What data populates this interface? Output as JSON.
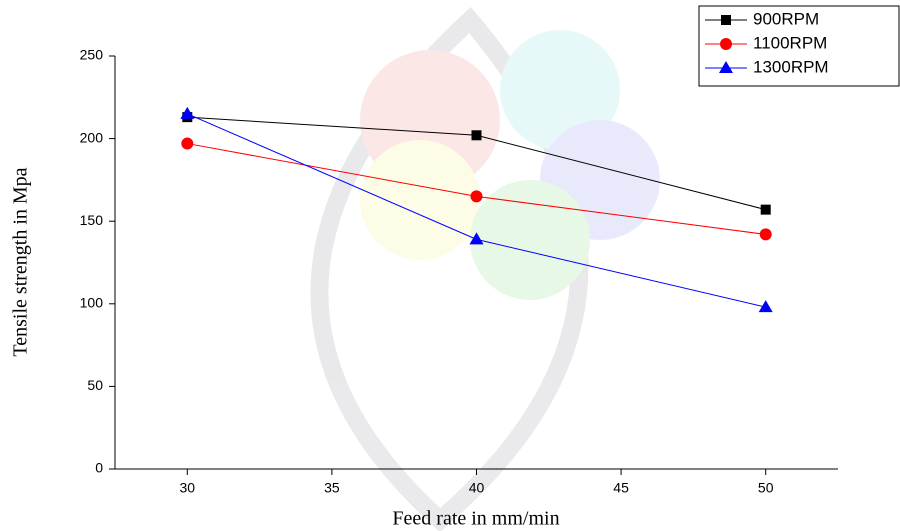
{
  "chart_data": {
    "type": "line",
    "x_label": "Feed rate in mm/min",
    "y_label": "Tensile strength in Mpa",
    "x": [
      30,
      40,
      50
    ],
    "series": [
      {
        "name": "900RPM",
        "color": "#000000",
        "marker": "square",
        "values": [
          213,
          202,
          157
        ]
      },
      {
        "name": "1100RPM",
        "color": "#ff0000",
        "marker": "circle",
        "values": [
          197,
          165,
          142
        ]
      },
      {
        "name": "1300RPM",
        "color": "#0000ff",
        "marker": "triangle",
        "values": [
          215,
          139,
          98
        ]
      }
    ],
    "xlim": [
      27.5,
      52.5
    ],
    "xticks": [
      30,
      35,
      40,
      45,
      50
    ],
    "ylim": [
      0,
      250
    ],
    "yticks": [
      0,
      50,
      100,
      150,
      200,
      250
    ],
    "legend": "upper right"
  }
}
